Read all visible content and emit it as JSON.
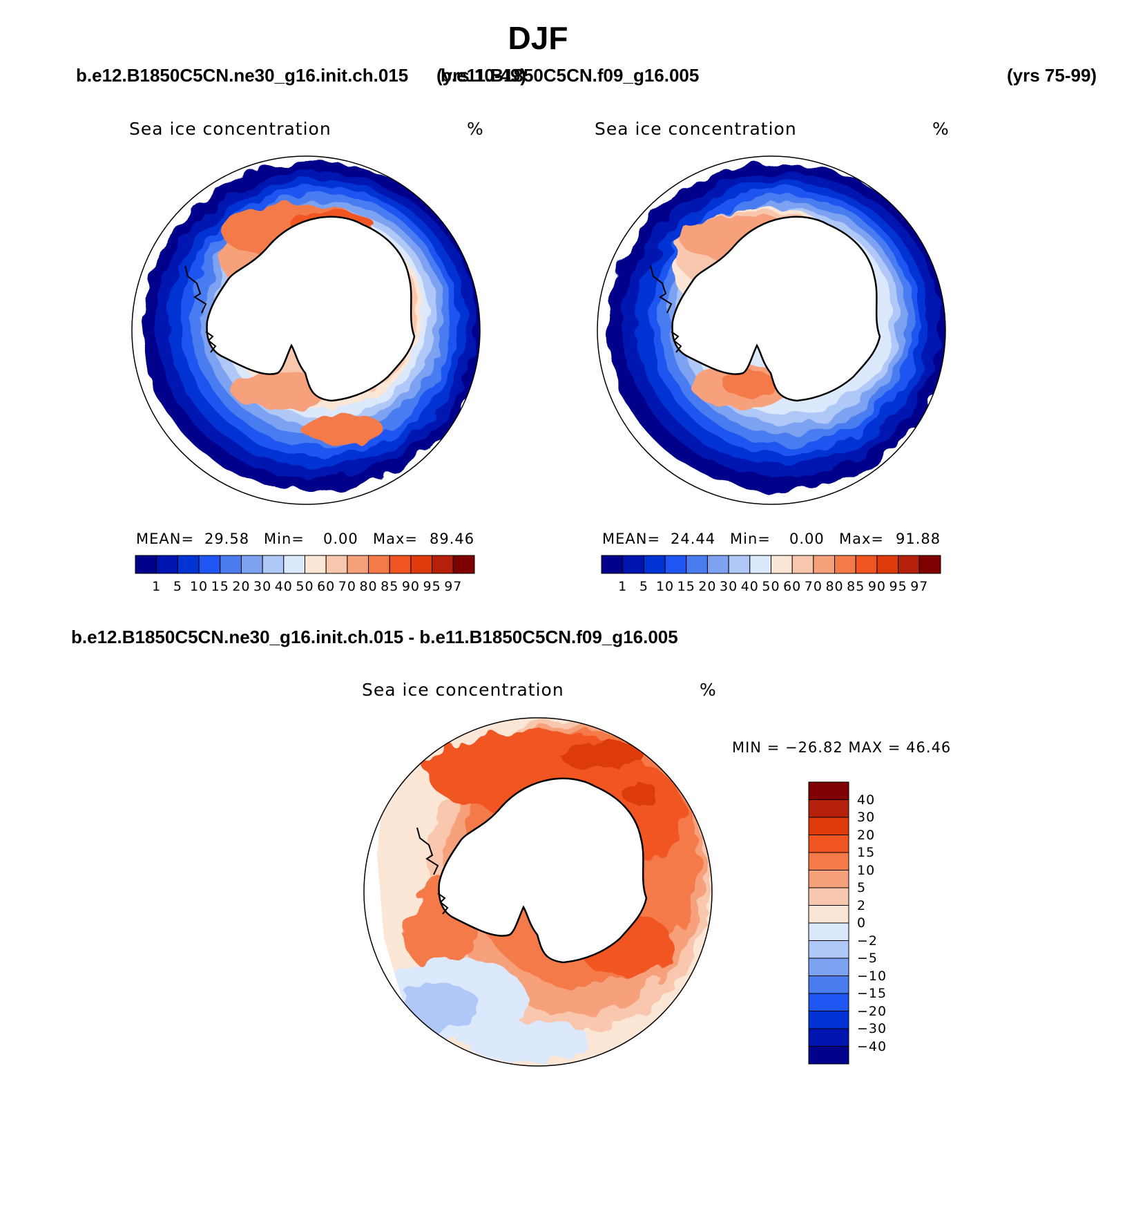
{
  "figure": {
    "season": "DJF",
    "case1": "b.e12.B1850C5CN.ne30_g16.init.ch.015",
    "case1_years": "(yrs 10-49)",
    "case2": "b.e11.B1850C5CN.f09_g16.005",
    "case2_years": "(yrs 75-99)",
    "diff_title": "b.e12.B1850C5CN.ne30_g16.init.ch.015 - b.e11.B1850C5CN.f09_g16.005"
  },
  "panels": {
    "case1": {
      "variable": "Sea ice concentration",
      "units": "%",
      "mean_label": "MEAN=",
      "mean": "29.58",
      "min_label": "Min=",
      "min": "0.00",
      "max_label": "Max=",
      "max": "89.46"
    },
    "case2": {
      "variable": "Sea ice concentration",
      "units": "%",
      "mean_label": "MEAN=",
      "mean": "24.44",
      "min_label": "Min=",
      "min": "0.00",
      "max_label": "Max=",
      "max": "91.88"
    },
    "diff": {
      "variable": "Sea ice concentration",
      "units": "%",
      "minmax_text": "MIN = −26.82 MAX =  46.46"
    }
  },
  "colorbars": {
    "abs_levels": [
      "1",
      "5",
      "10",
      "15",
      "20",
      "30",
      "40",
      "50",
      "60",
      "70",
      "80",
      "85",
      "90",
      "95",
      "97"
    ],
    "abs_colors": [
      "#00008b",
      "#0015b0",
      "#0032d4",
      "#1f55f0",
      "#4a7cf0",
      "#7da2f2",
      "#b0c8f7",
      "#dce8fb",
      "#fce6d6",
      "#f9c7ad",
      "#f6a07c",
      "#f57a4a",
      "#f05420",
      "#de3a0c",
      "#b5200a",
      "#7e0000"
    ],
    "diff_levels": [
      "40",
      "30",
      "20",
      "15",
      "10",
      "5",
      "2",
      "0",
      "−2",
      "−5",
      "−10",
      "−15",
      "−20",
      "−30",
      "−40"
    ],
    "diff_colors": [
      "#7e0000",
      "#b5200a",
      "#de3a0c",
      "#f05420",
      "#f57a4a",
      "#f6a07c",
      "#f9c7ad",
      "#fce6d6",
      "#dce8fb",
      "#b0c8f7",
      "#7da2f2",
      "#4a7cf0",
      "#1f55f0",
      "#0032d4",
      "#0015b0",
      "#00008b"
    ]
  }
}
